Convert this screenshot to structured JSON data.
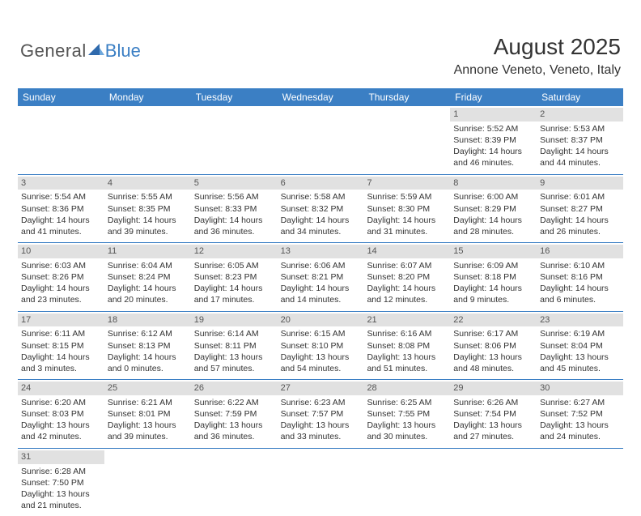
{
  "logo": {
    "text1": "General",
    "text2": "Blue"
  },
  "header": {
    "title": "August 2025",
    "location": "Annone Veneto, Veneto, Italy"
  },
  "colors": {
    "accent": "#3b7fc4",
    "gray_bar": "#e1e1e1",
    "text": "#333333",
    "bg": "#ffffff"
  },
  "days": [
    "Sunday",
    "Monday",
    "Tuesday",
    "Wednesday",
    "Thursday",
    "Friday",
    "Saturday"
  ],
  "cells": [
    {
      "n": "",
      "sr": "",
      "ss": "",
      "d1": "",
      "d2": ""
    },
    {
      "n": "",
      "sr": "",
      "ss": "",
      "d1": "",
      "d2": ""
    },
    {
      "n": "",
      "sr": "",
      "ss": "",
      "d1": "",
      "d2": ""
    },
    {
      "n": "",
      "sr": "",
      "ss": "",
      "d1": "",
      "d2": ""
    },
    {
      "n": "",
      "sr": "",
      "ss": "",
      "d1": "",
      "d2": ""
    },
    {
      "n": "1",
      "sr": "Sunrise: 5:52 AM",
      "ss": "Sunset: 8:39 PM",
      "d1": "Daylight: 14 hours",
      "d2": "and 46 minutes."
    },
    {
      "n": "2",
      "sr": "Sunrise: 5:53 AM",
      "ss": "Sunset: 8:37 PM",
      "d1": "Daylight: 14 hours",
      "d2": "and 44 minutes."
    },
    {
      "n": "3",
      "sr": "Sunrise: 5:54 AM",
      "ss": "Sunset: 8:36 PM",
      "d1": "Daylight: 14 hours",
      "d2": "and 41 minutes."
    },
    {
      "n": "4",
      "sr": "Sunrise: 5:55 AM",
      "ss": "Sunset: 8:35 PM",
      "d1": "Daylight: 14 hours",
      "d2": "and 39 minutes."
    },
    {
      "n": "5",
      "sr": "Sunrise: 5:56 AM",
      "ss": "Sunset: 8:33 PM",
      "d1": "Daylight: 14 hours",
      "d2": "and 36 minutes."
    },
    {
      "n": "6",
      "sr": "Sunrise: 5:58 AM",
      "ss": "Sunset: 8:32 PM",
      "d1": "Daylight: 14 hours",
      "d2": "and 34 minutes."
    },
    {
      "n": "7",
      "sr": "Sunrise: 5:59 AM",
      "ss": "Sunset: 8:30 PM",
      "d1": "Daylight: 14 hours",
      "d2": "and 31 minutes."
    },
    {
      "n": "8",
      "sr": "Sunrise: 6:00 AM",
      "ss": "Sunset: 8:29 PM",
      "d1": "Daylight: 14 hours",
      "d2": "and 28 minutes."
    },
    {
      "n": "9",
      "sr": "Sunrise: 6:01 AM",
      "ss": "Sunset: 8:27 PM",
      "d1": "Daylight: 14 hours",
      "d2": "and 26 minutes."
    },
    {
      "n": "10",
      "sr": "Sunrise: 6:03 AM",
      "ss": "Sunset: 8:26 PM",
      "d1": "Daylight: 14 hours",
      "d2": "and 23 minutes."
    },
    {
      "n": "11",
      "sr": "Sunrise: 6:04 AM",
      "ss": "Sunset: 8:24 PM",
      "d1": "Daylight: 14 hours",
      "d2": "and 20 minutes."
    },
    {
      "n": "12",
      "sr": "Sunrise: 6:05 AM",
      "ss": "Sunset: 8:23 PM",
      "d1": "Daylight: 14 hours",
      "d2": "and 17 minutes."
    },
    {
      "n": "13",
      "sr": "Sunrise: 6:06 AM",
      "ss": "Sunset: 8:21 PM",
      "d1": "Daylight: 14 hours",
      "d2": "and 14 minutes."
    },
    {
      "n": "14",
      "sr": "Sunrise: 6:07 AM",
      "ss": "Sunset: 8:20 PM",
      "d1": "Daylight: 14 hours",
      "d2": "and 12 minutes."
    },
    {
      "n": "15",
      "sr": "Sunrise: 6:09 AM",
      "ss": "Sunset: 8:18 PM",
      "d1": "Daylight: 14 hours",
      "d2": "and 9 minutes."
    },
    {
      "n": "16",
      "sr": "Sunrise: 6:10 AM",
      "ss": "Sunset: 8:16 PM",
      "d1": "Daylight: 14 hours",
      "d2": "and 6 minutes."
    },
    {
      "n": "17",
      "sr": "Sunrise: 6:11 AM",
      "ss": "Sunset: 8:15 PM",
      "d1": "Daylight: 14 hours",
      "d2": "and 3 minutes."
    },
    {
      "n": "18",
      "sr": "Sunrise: 6:12 AM",
      "ss": "Sunset: 8:13 PM",
      "d1": "Daylight: 14 hours",
      "d2": "and 0 minutes."
    },
    {
      "n": "19",
      "sr": "Sunrise: 6:14 AM",
      "ss": "Sunset: 8:11 PM",
      "d1": "Daylight: 13 hours",
      "d2": "and 57 minutes."
    },
    {
      "n": "20",
      "sr": "Sunrise: 6:15 AM",
      "ss": "Sunset: 8:10 PM",
      "d1": "Daylight: 13 hours",
      "d2": "and 54 minutes."
    },
    {
      "n": "21",
      "sr": "Sunrise: 6:16 AM",
      "ss": "Sunset: 8:08 PM",
      "d1": "Daylight: 13 hours",
      "d2": "and 51 minutes."
    },
    {
      "n": "22",
      "sr": "Sunrise: 6:17 AM",
      "ss": "Sunset: 8:06 PM",
      "d1": "Daylight: 13 hours",
      "d2": "and 48 minutes."
    },
    {
      "n": "23",
      "sr": "Sunrise: 6:19 AM",
      "ss": "Sunset: 8:04 PM",
      "d1": "Daylight: 13 hours",
      "d2": "and 45 minutes."
    },
    {
      "n": "24",
      "sr": "Sunrise: 6:20 AM",
      "ss": "Sunset: 8:03 PM",
      "d1": "Daylight: 13 hours",
      "d2": "and 42 minutes."
    },
    {
      "n": "25",
      "sr": "Sunrise: 6:21 AM",
      "ss": "Sunset: 8:01 PM",
      "d1": "Daylight: 13 hours",
      "d2": "and 39 minutes."
    },
    {
      "n": "26",
      "sr": "Sunrise: 6:22 AM",
      "ss": "Sunset: 7:59 PM",
      "d1": "Daylight: 13 hours",
      "d2": "and 36 minutes."
    },
    {
      "n": "27",
      "sr": "Sunrise: 6:23 AM",
      "ss": "Sunset: 7:57 PM",
      "d1": "Daylight: 13 hours",
      "d2": "and 33 minutes."
    },
    {
      "n": "28",
      "sr": "Sunrise: 6:25 AM",
      "ss": "Sunset: 7:55 PM",
      "d1": "Daylight: 13 hours",
      "d2": "and 30 minutes."
    },
    {
      "n": "29",
      "sr": "Sunrise: 6:26 AM",
      "ss": "Sunset: 7:54 PM",
      "d1": "Daylight: 13 hours",
      "d2": "and 27 minutes."
    },
    {
      "n": "30",
      "sr": "Sunrise: 6:27 AM",
      "ss": "Sunset: 7:52 PM",
      "d1": "Daylight: 13 hours",
      "d2": "and 24 minutes."
    },
    {
      "n": "31",
      "sr": "Sunrise: 6:28 AM",
      "ss": "Sunset: 7:50 PM",
      "d1": "Daylight: 13 hours",
      "d2": "and 21 minutes."
    },
    {
      "n": "",
      "sr": "",
      "ss": "",
      "d1": "",
      "d2": ""
    },
    {
      "n": "",
      "sr": "",
      "ss": "",
      "d1": "",
      "d2": ""
    },
    {
      "n": "",
      "sr": "",
      "ss": "",
      "d1": "",
      "d2": ""
    },
    {
      "n": "",
      "sr": "",
      "ss": "",
      "d1": "",
      "d2": ""
    },
    {
      "n": "",
      "sr": "",
      "ss": "",
      "d1": "",
      "d2": ""
    },
    {
      "n": "",
      "sr": "",
      "ss": "",
      "d1": "",
      "d2": ""
    }
  ]
}
